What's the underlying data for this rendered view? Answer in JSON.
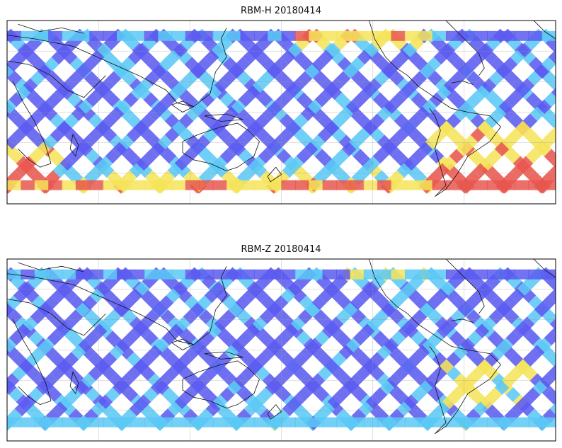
{
  "maps": [
    {
      "title": "RBM-H 20180414",
      "colors": {
        "low": "#5b5bf0",
        "mid": "#5bc8f5",
        "warm": "#f5e45b",
        "hot": "#e8574f"
      }
    },
    {
      "title": "RBM-Z 20180414",
      "colors": {
        "low": "#5b5bf0",
        "mid": "#5bc8f5",
        "warm": "#f5e45b",
        "hot": "#e8574f"
      }
    }
  ],
  "gridlines": true,
  "projection": "equirectangular, centered on 140E"
}
